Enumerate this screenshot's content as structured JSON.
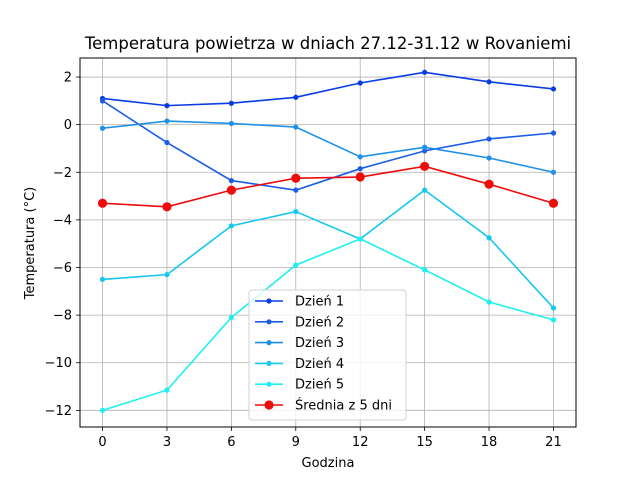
{
  "chart_data": {
    "type": "line",
    "title": "Temperatura powietrza w dniach 27.12-31.12 w Rovaniemi",
    "xlabel": "Godzina",
    "ylabel": "Temperatura (°C)",
    "x": [
      0,
      3,
      6,
      9,
      12,
      15,
      18,
      21
    ],
    "xticks": [
      0,
      3,
      6,
      9,
      12,
      15,
      18,
      21
    ],
    "yticks": [
      -12,
      -10,
      -8,
      -6,
      -4,
      -2,
      0,
      2
    ],
    "xlim": [
      -1.05,
      22.05
    ],
    "ylim": [
      -12.7,
      2.8
    ],
    "grid": true,
    "legend_position": "lower center",
    "series": [
      {
        "name": "Dzień 1",
        "color": "#0a3ce6",
        "marker": "dot",
        "values": [
          1.1,
          0.8,
          0.9,
          1.15,
          1.75,
          2.2,
          1.8,
          1.5
        ]
      },
      {
        "name": "Dzień 2",
        "color": "#1a5de8",
        "marker": "dot",
        "values": [
          1.0,
          -0.75,
          -2.35,
          -2.75,
          -1.85,
          -1.1,
          -0.6,
          -0.35
        ]
      },
      {
        "name": "Dzień 3",
        "color": "#1f90e8",
        "marker": "dot",
        "values": [
          -0.15,
          0.15,
          0.05,
          -0.1,
          -1.35,
          -0.95,
          -1.4,
          -2.0
        ]
      },
      {
        "name": "Dzień 4",
        "color": "#14c8f0",
        "marker": "dot",
        "values": [
          -6.5,
          -6.3,
          -4.25,
          -3.65,
          -4.8,
          -2.75,
          -4.75,
          -7.7
        ]
      },
      {
        "name": "Dzień 5",
        "color": "#1ef0f0",
        "marker": "dot",
        "values": [
          -12.0,
          -11.15,
          -8.1,
          -5.9,
          -4.8,
          -6.1,
          -7.45,
          -8.2
        ]
      },
      {
        "name": "Średnia z 5 dni",
        "color": "#ee0b0b",
        "marker": "big-dot",
        "values": [
          -3.3,
          -3.45,
          -2.75,
          -2.25,
          -2.2,
          -1.75,
          -2.5,
          -3.3
        ]
      }
    ]
  }
}
